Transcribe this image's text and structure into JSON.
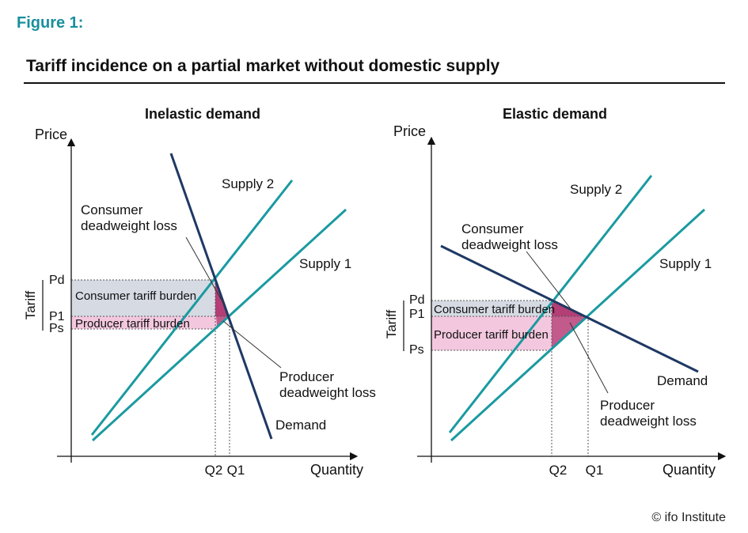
{
  "figure_label": "Figure 1:",
  "title": "Tariff incidence on a partial market without domestic supply",
  "copyright": "© ifo Institute",
  "colors": {
    "supply": "#1a9aa0",
    "demand": "#1f3864",
    "consumer_burden": "#d5dae3",
    "producer_burden": "#f3c8df",
    "deadweight": "#c2457f",
    "accent": "#1a8f9e"
  },
  "chart_data": [
    {
      "type": "line",
      "title": "Inelastic demand",
      "xlabel": "Quantity",
      "ylabel": "Price",
      "tariff_label": "Tariff",
      "price_ticks": [
        "Pd",
        "P1",
        "Ps"
      ],
      "quantity_ticks": [
        "Q2",
        "Q1"
      ],
      "series": [
        {
          "name": "Supply 1",
          "points": [
            [
              0.08,
              0.07
            ],
            [
              1.05,
              1.0
            ]
          ]
        },
        {
          "name": "Supply 2",
          "points": [
            [
              0.08,
              0.09
            ],
            [
              0.8,
              1.15
            ]
          ]
        },
        {
          "name": "Demand",
          "points": [
            [
              0.36,
              1.25
            ],
            [
              0.77,
              0.07
            ]
          ]
        }
      ],
      "areas": [
        {
          "label": "Consumer tariff burden"
        },
        {
          "label": "Producer tariff burden"
        }
      ],
      "annotations": [
        "Consumer deadweight loss",
        "Producer deadweight loss"
      ]
    },
    {
      "type": "line",
      "title": "Elastic demand",
      "xlabel": "Quantity",
      "ylabel": "Price",
      "tariff_label": "Tariff",
      "price_ticks": [
        "Pd",
        "P1",
        "Ps"
      ],
      "quantity_ticks": [
        "Q2",
        "Q1"
      ],
      "series": [
        {
          "name": "Supply 2",
          "points": [
            [
              0.07,
              0.1
            ],
            [
              0.81,
              1.16
            ]
          ]
        },
        {
          "name": "Supply 1",
          "points": [
            [
              0.08,
              0.07
            ],
            [
              1.04,
              1.0
            ]
          ]
        },
        {
          "name": "Demand",
          "points": [
            [
              0.04,
              0.87
            ],
            [
              0.98,
              0.37
            ]
          ]
        }
      ],
      "areas": [
        {
          "label": "Consumer tariff burden"
        },
        {
          "label": "Producer tariff burden"
        }
      ],
      "annotations": [
        "Consumer deadweight loss",
        "Producer deadweight loss"
      ]
    }
  ]
}
